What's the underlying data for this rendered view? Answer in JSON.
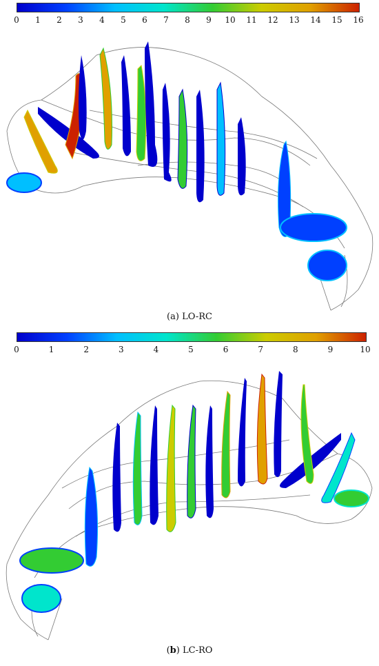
{
  "colormap": [
    "#0000cc",
    "#0040ff",
    "#00bfff",
    "#00e5cc",
    "#33cc33",
    "#cccc00",
    "#e0a000",
    "#cc2200"
  ],
  "panels": [
    {
      "id": "a",
      "label": "a",
      "caption_text": "LO-RC",
      "colorbar": {
        "min": 0,
        "max": 16,
        "ticks": [
          "0",
          "1",
          "2",
          "3",
          "4",
          "5",
          "6",
          "7",
          "8",
          "9",
          "10",
          "11",
          "12",
          "13",
          "14",
          "15",
          "16"
        ]
      }
    },
    {
      "id": "b",
      "label": "b",
      "caption_text": "LC-RO",
      "colorbar": {
        "min": 0,
        "max": 10,
        "ticks": [
          "0",
          "1",
          "2",
          "3",
          "4",
          "5",
          "6",
          "7",
          "8",
          "9",
          "10"
        ]
      }
    }
  ]
}
